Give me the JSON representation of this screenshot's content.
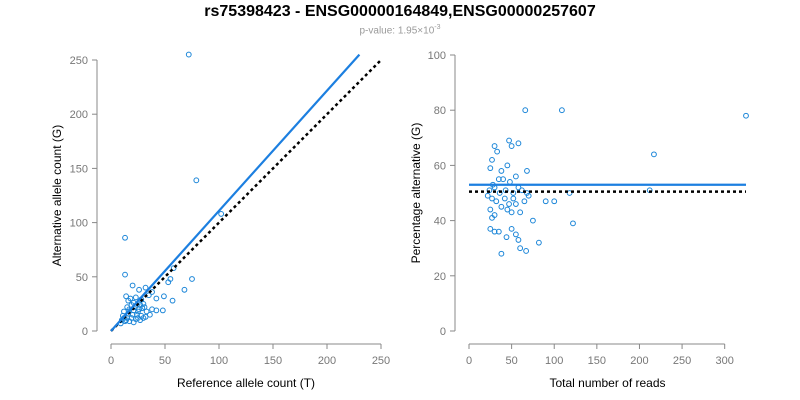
{
  "title": "rs75398423 - ENSG00000164849,ENSG00000257607",
  "subtitle": {
    "prefix": "p-value: 1.95×10",
    "exponent": "-3"
  },
  "colors": {
    "point": "#1c86d8",
    "fit_line": "#1c7fe0",
    "reference_line": "#000000",
    "axis": "#888888"
  },
  "chart_data": [
    {
      "type": "scatter",
      "title": "",
      "xlabel": "Reference allele count (T)",
      "ylabel": "Alternative allele count (G)",
      "xlim": [
        0,
        250
      ],
      "ylim": [
        0,
        250
      ],
      "xticks": [
        0,
        50,
        100,
        150,
        200,
        250
      ],
      "yticks": [
        0,
        50,
        100,
        150,
        200,
        250
      ],
      "grid": false,
      "fit_line": {
        "x": [
          0,
          230
        ],
        "y": [
          0,
          255
        ],
        "style": "solid"
      },
      "reference_line": {
        "x": [
          0,
          250
        ],
        "y": [
          0,
          250
        ],
        "style": "dotted"
      },
      "points": [
        [
          72,
          255
        ],
        [
          79,
          139
        ],
        [
          102,
          108
        ],
        [
          13,
          86
        ],
        [
          75,
          48
        ],
        [
          58,
          58
        ],
        [
          55,
          48
        ],
        [
          53,
          45
        ],
        [
          68,
          38
        ],
        [
          13,
          52
        ],
        [
          20,
          42
        ],
        [
          32,
          40
        ],
        [
          26,
          38
        ],
        [
          38,
          36
        ],
        [
          14,
          32
        ],
        [
          18,
          30
        ],
        [
          23,
          31
        ],
        [
          28,
          29
        ],
        [
          35,
          33
        ],
        [
          42,
          30
        ],
        [
          49,
          32
        ],
        [
          57,
          28
        ],
        [
          16,
          28
        ],
        [
          21,
          26
        ],
        [
          24,
          24
        ],
        [
          27,
          24
        ],
        [
          30,
          25
        ],
        [
          19,
          24
        ],
        [
          31,
          22
        ],
        [
          22,
          22
        ],
        [
          26,
          20
        ],
        [
          29,
          21
        ],
        [
          15,
          22
        ],
        [
          17,
          20
        ],
        [
          21,
          19
        ],
        [
          25,
          18
        ],
        [
          33,
          18
        ],
        [
          38,
          20
        ],
        [
          42,
          19
        ],
        [
          48,
          19
        ],
        [
          12,
          18
        ],
        [
          16,
          16
        ],
        [
          20,
          15
        ],
        [
          24,
          15
        ],
        [
          28,
          14
        ],
        [
          32,
          13
        ],
        [
          36,
          15
        ],
        [
          11,
          14
        ],
        [
          15,
          12
        ],
        [
          19,
          12
        ],
        [
          23,
          11
        ],
        [
          27,
          10
        ],
        [
          30,
          12
        ],
        [
          10,
          10
        ],
        [
          13,
          9
        ],
        [
          17,
          9
        ],
        [
          21,
          8
        ],
        [
          14,
          10
        ],
        [
          9,
          7
        ],
        [
          25,
          12
        ],
        [
          12,
          12
        ]
      ]
    },
    {
      "type": "scatter",
      "title": "",
      "xlabel": "Total number of reads",
      "ylabel": "Percentage alternative (G)",
      "xlim": [
        0,
        325
      ],
      "ylim": [
        0,
        100
      ],
      "xticks": [
        0,
        50,
        100,
        150,
        200,
        250,
        300
      ],
      "yticks": [
        0,
        20,
        40,
        60,
        80,
        100
      ],
      "grid": false,
      "fit_line": {
        "x": [
          0,
          325
        ],
        "y": [
          53,
          53
        ],
        "style": "solid"
      },
      "reference_line": {
        "x": [
          0,
          325
        ],
        "y": [
          50.5,
          50.5
        ],
        "style": "dotted"
      },
      "points": [
        [
          66,
          80
        ],
        [
          109,
          80
        ],
        [
          325,
          78
        ],
        [
          217,
          64
        ],
        [
          212,
          51
        ],
        [
          47,
          69
        ],
        [
          50,
          67
        ],
        [
          58,
          68
        ],
        [
          68,
          58
        ],
        [
          30,
          67
        ],
        [
          33,
          65
        ],
        [
          27,
          62
        ],
        [
          25,
          59
        ],
        [
          38,
          58
        ],
        [
          45,
          60
        ],
        [
          55,
          56
        ],
        [
          40,
          55
        ],
        [
          48,
          54
        ],
        [
          35,
          55
        ],
        [
          28,
          53
        ],
        [
          24,
          51
        ],
        [
          30,
          52
        ],
        [
          36,
          50
        ],
        [
          43,
          51
        ],
        [
          52,
          50
        ],
        [
          58,
          52
        ],
        [
          62,
          51
        ],
        [
          70,
          49
        ],
        [
          22,
          49
        ],
        [
          27,
          48
        ],
        [
          32,
          47
        ],
        [
          42,
          48
        ],
        [
          47,
          46
        ],
        [
          55,
          46
        ],
        [
          65,
          47
        ],
        [
          90,
          47
        ],
        [
          100,
          47
        ],
        [
          118,
          50
        ],
        [
          38,
          45
        ],
        [
          45,
          44
        ],
        [
          50,
          43
        ],
        [
          25,
          44
        ],
        [
          30,
          42
        ],
        [
          27,
          41
        ],
        [
          60,
          43
        ],
        [
          75,
          40
        ],
        [
          122,
          39
        ],
        [
          25,
          37
        ],
        [
          30,
          36
        ],
        [
          35,
          36
        ],
        [
          44,
          34
        ],
        [
          50,
          37
        ],
        [
          55,
          35
        ],
        [
          58,
          33
        ],
        [
          82,
          32
        ],
        [
          60,
          30
        ],
        [
          67,
          29
        ],
        [
          38,
          28
        ],
        [
          68,
          50
        ],
        [
          52,
          48
        ]
      ]
    }
  ]
}
